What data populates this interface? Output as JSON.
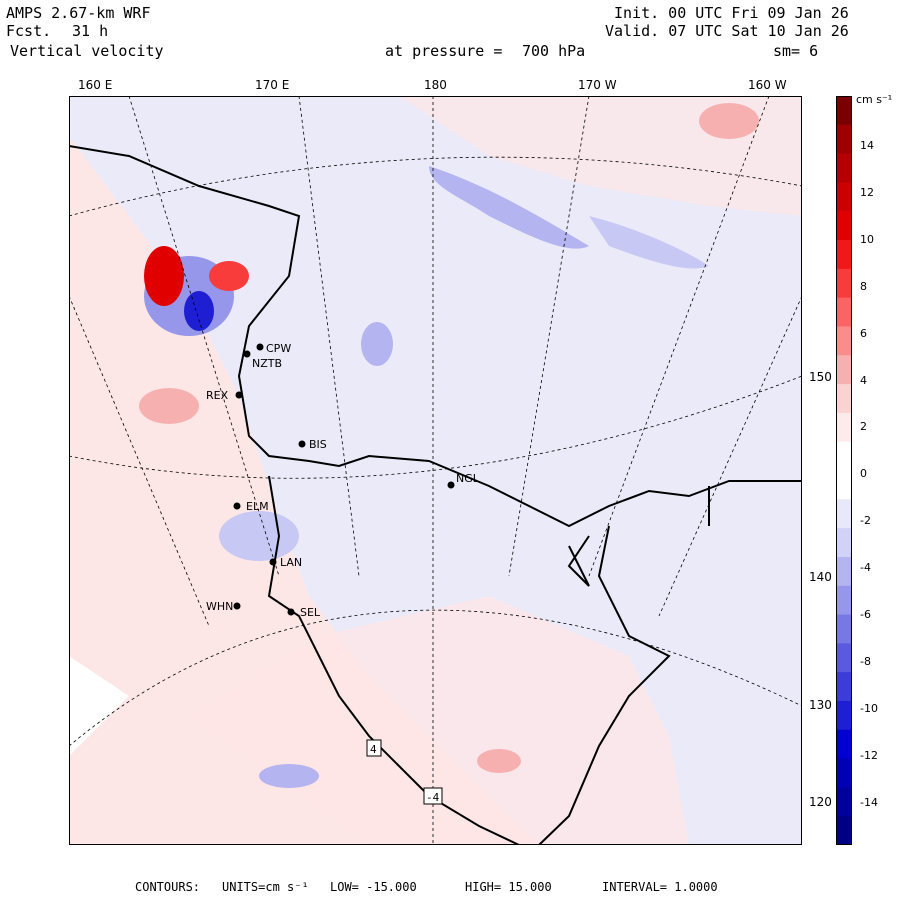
{
  "header": {
    "model": "AMPS 2.67-km WRF",
    "forecast_label": "Fcst.",
    "forecast_value": "31 h",
    "field": "Vertical velocity",
    "init": "Init. 00 UTC Fri 09 Jan 26",
    "valid": "Valid. 07 UTC Sat 10 Jan 26",
    "pressure_label": "at pressure =",
    "pressure_value": "700 hPa",
    "smooth": "sm= 6"
  },
  "longitude_labels": [
    "160 E",
    "170 E",
    "180",
    "170 W",
    "160 W"
  ],
  "latitude_labels": [
    "150 W",
    "140 W",
    "130 W",
    "120 W"
  ],
  "colorbar": {
    "units": "cm s⁻¹",
    "ticks": [
      "14",
      "12",
      "10",
      "8",
      "6",
      "4",
      "2",
      "0",
      "-2",
      "-4",
      "-6",
      "-8",
      "-10",
      "-12",
      "-14"
    ],
    "colors": [
      "#7a0000",
      "#9e0000",
      "#b40000",
      "#cc0000",
      "#e00000",
      "#f01818",
      "#f83c3c",
      "#fa6464",
      "#fa8c8c",
      "#f7b0b0",
      "#fbd2d2",
      "#fdeaea",
      "#ffffff",
      "#ffffff",
      "#e8e8fb",
      "#d2d2f8",
      "#b4b4f0",
      "#9696ea",
      "#7878e4",
      "#5a5ade",
      "#3c3cd8",
      "#1e1ed2",
      "#0000d0",
      "#0000b4",
      "#00009c",
      "#000084"
    ]
  },
  "stations": [
    {
      "name": "CPW"
    },
    {
      "name": "NZTB"
    },
    {
      "name": "REX"
    },
    {
      "name": "BIS"
    },
    {
      "name": "NGL"
    },
    {
      "name": "ELM"
    },
    {
      "name": "LAN"
    },
    {
      "name": "WHN"
    },
    {
      "name": "SEL"
    }
  ],
  "contour_labels": [
    "4",
    "-4"
  ],
  "footer": {
    "contours_label": "CONTOURS:",
    "units": "UNITS=cm s⁻¹",
    "low": "LOW= -15.000",
    "high": "HIGH= 15.000",
    "interval": "INTERVAL= 1.0000"
  }
}
